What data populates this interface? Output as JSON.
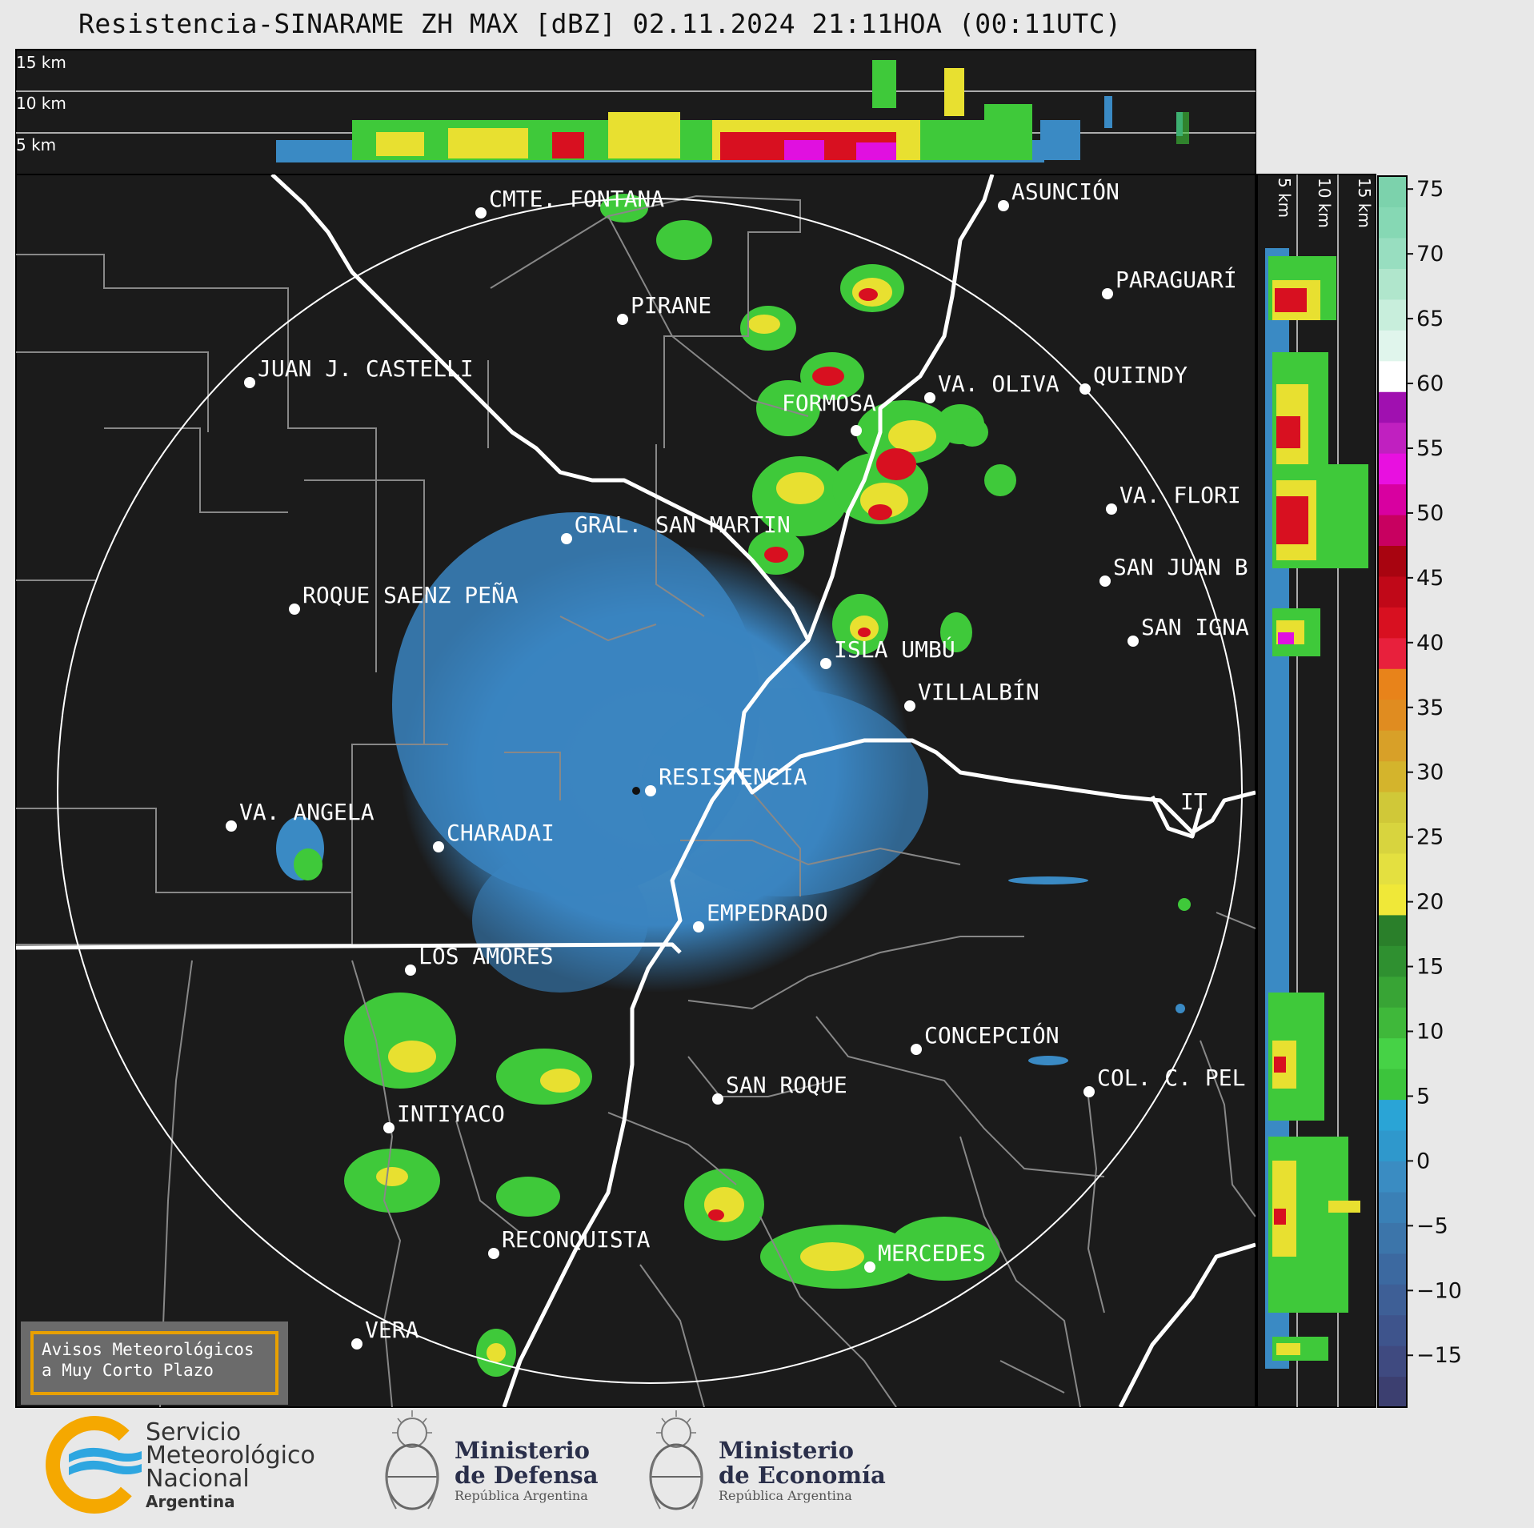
{
  "title": "Resistencia-SINARAME ZH MAX [dBZ] 02.11.2024 21:11HOA (00:11UTC)",
  "top_panel_labels": [
    "15 km",
    "10 km",
    "5 km"
  ],
  "side_panel_labels": [
    "5 km",
    "10 km",
    "15 km"
  ],
  "colorbar": {
    "ticks": [
      "75",
      "70",
      "65",
      "60",
      "55",
      "50",
      "45",
      "40",
      "35",
      "30",
      "25",
      "20",
      "15",
      "10",
      "5",
      "0",
      "−5",
      "−10",
      "−15"
    ],
    "range_dbz": [
      -19,
      76
    ]
  },
  "cities": [
    {
      "name": "CMTE. FONTANA"
    },
    {
      "name": "ASUNCIÓN"
    },
    {
      "name": "PARAGUARÍ"
    },
    {
      "name": "PIRANE"
    },
    {
      "name": "JUAN J. CASTELLI"
    },
    {
      "name": "VA. OLIVA"
    },
    {
      "name": "QUIINDY"
    },
    {
      "name": "FORMOSA"
    },
    {
      "name": "VA. FLORI"
    },
    {
      "name": "GRAL. SAN MARTIN"
    },
    {
      "name": "SAN JUAN B"
    },
    {
      "name": "ROQUE SAENZ PEÑA"
    },
    {
      "name": "SAN IGNA"
    },
    {
      "name": "ISLA UMBÚ"
    },
    {
      "name": "VILLALBÍN"
    },
    {
      "name": "RESISTENCIA"
    },
    {
      "name": "VA. ANGELA"
    },
    {
      "name": "CHARADAI"
    },
    {
      "name": "IT"
    },
    {
      "name": "EMPEDRADO"
    },
    {
      "name": "LOS AMORES"
    },
    {
      "name": "CONCEPCIÓN"
    },
    {
      "name": "SAN ROQUE"
    },
    {
      "name": "COL. C. PEL"
    },
    {
      "name": "INTIYACO"
    },
    {
      "name": "RECONQUISTA"
    },
    {
      "name": "MERCEDES"
    },
    {
      "name": "VERA"
    }
  ],
  "avisos": {
    "line1": "Avisos Meteorológicos",
    "line2": "a Muy Corto Plazo"
  },
  "footer": {
    "smn": {
      "line1": "Servicio",
      "line2": "Meteorológico",
      "line3": "Nacional",
      "line4": "Argentina"
    },
    "defensa": {
      "line1": "Ministerio",
      "line2": "de Defensa",
      "line3": "República Argentina"
    },
    "economia": {
      "line1": "Ministerio",
      "line2": "de Economía",
      "line3": "República Argentina"
    }
  },
  "colors": {
    "background": "#1b1b1b",
    "page": "#e8e8e8",
    "light_echo": "#3b8ac4",
    "green_echo": "#3fc93a",
    "yellow_echo": "#e8e030",
    "red_echo": "#d81020",
    "magenta_echo": "#e010e0",
    "accent": "#e8a000"
  }
}
